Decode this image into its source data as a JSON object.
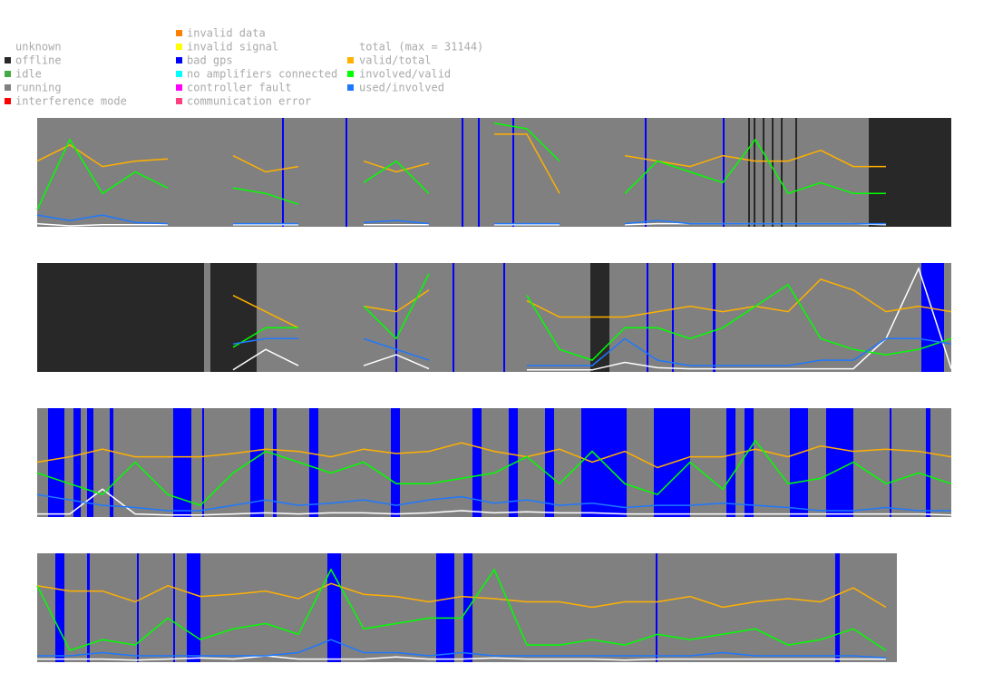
{
  "legend": {
    "states": [
      {
        "name": "unknown",
        "color": "#ffffff"
      },
      {
        "name": "offline",
        "color": "#282828"
      },
      {
        "name": "idle",
        "color": "#44aa44"
      },
      {
        "name": "running",
        "color": "#808080"
      },
      {
        "name": "interference mode",
        "color": "#ff0000"
      },
      {
        "name": "invalid data",
        "color": "#ff8000"
      },
      {
        "name": "invalid signal",
        "color": "#ffff00"
      },
      {
        "name": "bad gps",
        "color": "#0000ff"
      },
      {
        "name": "no amplifiers connected",
        "color": "#00ffff"
      },
      {
        "name": "controller fault",
        "color": "#ff00ff"
      },
      {
        "name": "communication error",
        "color": "#ff4080"
      }
    ],
    "series": [
      {
        "name": "total (max = 31144)",
        "color": "#ffffff"
      },
      {
        "name": "valid/total",
        "color": "#ffb000"
      },
      {
        "name": "involved/valid",
        "color": "#00ff00"
      },
      {
        "name": "used/involved",
        "color": "#1e78ff"
      }
    ]
  },
  "chart_data": [
    {
      "type": "line",
      "xlim": [
        0,
        1008
      ],
      "ylim": [
        0,
        1
      ],
      "x": [
        0,
        36,
        72,
        108,
        144,
        180,
        216,
        252,
        288,
        324,
        360,
        396,
        432,
        468,
        504,
        540,
        576,
        612,
        648,
        684,
        720,
        756,
        792,
        828,
        864,
        900,
        936,
        972,
        1008
      ],
      "states": [
        {
          "state": 3,
          "from": 0,
          "to": 1008
        },
        {
          "state": 1,
          "from": 917,
          "to": 1008
        },
        {
          "state": 7,
          "from": 270,
          "to": 272
        },
        {
          "state": 7,
          "from": 340,
          "to": 342
        },
        {
          "state": 7,
          "from": 468,
          "to": 470
        },
        {
          "state": 7,
          "from": 486,
          "to": 488
        },
        {
          "state": 7,
          "from": 524,
          "to": 526
        },
        {
          "state": 7,
          "from": 670,
          "to": 672
        },
        {
          "state": 7,
          "from": 756,
          "to": 758
        },
        {
          "state": 1,
          "from": 784,
          "to": 786
        },
        {
          "state": 1,
          "from": 790,
          "to": 792
        },
        {
          "state": 1,
          "from": 800,
          "to": 802
        },
        {
          "state": 1,
          "from": 810,
          "to": 812
        },
        {
          "state": 1,
          "from": 820,
          "to": 822
        },
        {
          "state": 1,
          "from": 836,
          "to": 838
        }
      ],
      "series": [
        {
          "values": [
            0.02,
            0,
            0.01,
            0.01,
            0.01,
            null,
            0.01,
            0.01,
            0.01,
            null,
            0.01,
            0.01,
            0.01,
            null,
            0.01,
            0.01,
            0.01,
            null,
            0.01,
            0.02,
            0.02,
            0.02,
            0.02,
            0.02,
            0.02,
            0.02,
            0.01,
            null,
            null
          ]
        },
        {
          "values": [
            0.6,
            0.75,
            0.55,
            0.6,
            0.62,
            null,
            0.65,
            0.5,
            0.55,
            null,
            0.6,
            0.5,
            0.58,
            null,
            0.85,
            0.85,
            0.3,
            null,
            0.65,
            0.6,
            0.55,
            0.65,
            0.6,
            0.6,
            0.7,
            0.55,
            0.55,
            null,
            null
          ]
        },
        {
          "values": [
            0.15,
            0.8,
            0.3,
            0.5,
            0.35,
            null,
            0.35,
            0.3,
            0.2,
            null,
            0.4,
            0.6,
            0.3,
            null,
            0.95,
            0.9,
            0.6,
            null,
            0.3,
            0.6,
            0.5,
            0.4,
            0.8,
            0.3,
            0.4,
            0.3,
            0.3,
            null,
            null
          ]
        },
        {
          "values": [
            0.1,
            0.05,
            0.1,
            0.03,
            0.02,
            null,
            0.02,
            0.02,
            0.02,
            null,
            0.03,
            0.05,
            0.02,
            null,
            0.02,
            0.02,
            0.02,
            null,
            0.02,
            0.05,
            0.02,
            0.02,
            0.02,
            0.02,
            0.02,
            0.02,
            0.02,
            null,
            null
          ]
        }
      ]
    },
    {
      "type": "line",
      "xlim": [
        0,
        1008
      ],
      "ylim": [
        0,
        1
      ],
      "x": [
        0,
        36,
        72,
        108,
        144,
        180,
        216,
        252,
        288,
        324,
        360,
        396,
        432,
        468,
        504,
        540,
        576,
        612,
        648,
        684,
        720,
        756,
        792,
        828,
        864,
        900,
        936,
        972,
        1008
      ],
      "states": [
        {
          "state": 3,
          "from": 0,
          "to": 1008
        },
        {
          "state": 1,
          "from": 0,
          "to": 184
        },
        {
          "state": 1,
          "from": 191,
          "to": 242
        },
        {
          "state": 1,
          "from": 610,
          "to": 631
        },
        {
          "state": 7,
          "from": 395,
          "to": 397
        },
        {
          "state": 7,
          "from": 458,
          "to": 460
        },
        {
          "state": 7,
          "from": 514,
          "to": 516
        },
        {
          "state": 7,
          "from": 672,
          "to": 674
        },
        {
          "state": 7,
          "from": 700,
          "to": 702
        },
        {
          "state": 7,
          "from": 745,
          "to": 748
        },
        {
          "state": 7,
          "from": 975,
          "to": 1000
        }
      ],
      "series": [
        {
          "values": [
            null,
            null,
            null,
            null,
            null,
            null,
            0.01,
            0.2,
            0.05,
            null,
            0.05,
            0.15,
            0.02,
            null,
            null,
            0.01,
            0.01,
            0.01,
            0.08,
            0.03,
            0.02,
            0.02,
            0.02,
            0.02,
            0.02,
            0.02,
            0.3,
            0.95,
            0.02
          ]
        },
        {
          "values": [
            null,
            null,
            null,
            null,
            null,
            null,
            0.7,
            0.55,
            0.4,
            null,
            0.6,
            0.55,
            0.75,
            null,
            null,
            0.65,
            0.5,
            0.5,
            0.5,
            0.55,
            0.6,
            0.55,
            0.6,
            0.55,
            0.85,
            0.75,
            0.55,
            0.6,
            0.55
          ]
        },
        {
          "values": [
            null,
            null,
            null,
            null,
            null,
            null,
            0.22,
            0.4,
            0.4,
            null,
            0.6,
            0.3,
            0.9,
            null,
            null,
            0.7,
            0.2,
            0.1,
            0.4,
            0.4,
            0.3,
            0.4,
            0.6,
            0.8,
            0.3,
            0.2,
            0.15,
            0.2,
            0.3
          ]
        },
        {
          "values": [
            null,
            null,
            null,
            null,
            null,
            null,
            0.25,
            0.3,
            0.3,
            null,
            0.3,
            0.2,
            0.1,
            null,
            null,
            0.05,
            0.05,
            0.05,
            0.3,
            0.1,
            0.05,
            0.05,
            0.05,
            0.05,
            0.1,
            0.1,
            0.3,
            0.3,
            0.25
          ]
        }
      ]
    },
    {
      "type": "line",
      "xlim": [
        0,
        1008
      ],
      "ylim": [
        0,
        1
      ],
      "x": [
        0,
        36,
        72,
        108,
        144,
        180,
        216,
        252,
        288,
        324,
        360,
        396,
        432,
        468,
        504,
        540,
        576,
        612,
        648,
        684,
        720,
        756,
        792,
        828,
        864,
        900,
        936,
        972,
        1008
      ],
      "states": [
        {
          "state": 3,
          "from": 0,
          "to": 1008
        },
        {
          "state": 7,
          "from": 12,
          "to": 30
        },
        {
          "state": 7,
          "from": 40,
          "to": 48
        },
        {
          "state": 7,
          "from": 55,
          "to": 62
        },
        {
          "state": 7,
          "from": 80,
          "to": 84
        },
        {
          "state": 7,
          "from": 150,
          "to": 170
        },
        {
          "state": 7,
          "from": 182,
          "to": 184
        },
        {
          "state": 7,
          "from": 235,
          "to": 250
        },
        {
          "state": 7,
          "from": 260,
          "to": 264
        },
        {
          "state": 7,
          "from": 300,
          "to": 310
        },
        {
          "state": 7,
          "from": 390,
          "to": 400
        },
        {
          "state": 7,
          "from": 480,
          "to": 490
        },
        {
          "state": 7,
          "from": 520,
          "to": 530
        },
        {
          "state": 7,
          "from": 560,
          "to": 570
        },
        {
          "state": 7,
          "from": 600,
          "to": 650
        },
        {
          "state": 7,
          "from": 680,
          "to": 720
        },
        {
          "state": 7,
          "from": 760,
          "to": 770
        },
        {
          "state": 7,
          "from": 780,
          "to": 790
        },
        {
          "state": 7,
          "from": 830,
          "to": 850
        },
        {
          "state": 7,
          "from": 870,
          "to": 900
        },
        {
          "state": 7,
          "from": 940,
          "to": 942
        },
        {
          "state": 7,
          "from": 980,
          "to": 985
        }
      ],
      "series": [
        {
          "values": [
            0.02,
            0.02,
            0.25,
            0.02,
            0.01,
            0.01,
            0.02,
            0.03,
            0.02,
            0.03,
            0.03,
            0.02,
            0.03,
            0.05,
            0.03,
            0.04,
            0.03,
            0.03,
            0.02,
            0.02,
            0.02,
            0.02,
            0.02,
            0.02,
            0.02,
            0.02,
            0.02,
            0.02,
            0.01
          ]
        },
        {
          "values": [
            0.5,
            0.55,
            0.62,
            0.55,
            0.55,
            0.55,
            0.58,
            0.62,
            0.6,
            0.55,
            0.62,
            0.58,
            0.6,
            0.68,
            0.6,
            0.55,
            0.62,
            0.5,
            0.6,
            0.45,
            0.55,
            0.55,
            0.62,
            0.55,
            0.65,
            0.6,
            0.62,
            0.6,
            0.55
          ]
        },
        {
          "values": [
            0.4,
            0.3,
            0.2,
            0.5,
            0.2,
            0.1,
            0.4,
            0.6,
            0.5,
            0.4,
            0.5,
            0.3,
            0.3,
            0.35,
            0.4,
            0.55,
            0.3,
            0.6,
            0.3,
            0.2,
            0.5,
            0.25,
            0.7,
            0.3,
            0.35,
            0.5,
            0.3,
            0.4,
            0.3
          ]
        },
        {
          "values": [
            0.2,
            0.15,
            0.1,
            0.08,
            0.05,
            0.05,
            0.1,
            0.15,
            0.1,
            0.12,
            0.15,
            0.1,
            0.15,
            0.18,
            0.12,
            0.15,
            0.1,
            0.12,
            0.08,
            0.1,
            0.1,
            0.12,
            0.1,
            0.08,
            0.05,
            0.05,
            0.08,
            0.05,
            0.05
          ]
        }
      ]
    },
    {
      "type": "line",
      "xlim": [
        0,
        1008
      ],
      "ylim": [
        0,
        1
      ],
      "x": [
        0,
        36,
        72,
        108,
        144,
        180,
        216,
        252,
        288,
        324,
        360,
        396,
        432,
        468,
        504,
        540,
        576,
        612,
        648,
        684,
        720,
        756,
        792,
        828,
        864,
        900,
        936,
        972,
        1008
      ],
      "states": [
        {
          "state": 3,
          "from": 0,
          "to": 948
        },
        {
          "state": 7,
          "from": 20,
          "to": 30
        },
        {
          "state": 7,
          "from": 55,
          "to": 58
        },
        {
          "state": 7,
          "from": 110,
          "to": 112
        },
        {
          "state": 7,
          "from": 150,
          "to": 152
        },
        {
          "state": 7,
          "from": 165,
          "to": 180
        },
        {
          "state": 7,
          "from": 320,
          "to": 335
        },
        {
          "state": 7,
          "from": 440,
          "to": 460
        },
        {
          "state": 7,
          "from": 470,
          "to": 480
        },
        {
          "state": 7,
          "from": 682,
          "to": 684
        },
        {
          "state": 7,
          "from": 880,
          "to": 885
        }
      ],
      "series": [
        {
          "values": [
            0.02,
            0.02,
            0.02,
            0.01,
            0.02,
            0.03,
            0.02,
            0.05,
            0.02,
            0.02,
            0.02,
            0.04,
            0.02,
            0.02,
            0.03,
            0.02,
            0.02,
            0.02,
            0.01,
            0.02,
            0.02,
            0.02,
            0.02,
            0.02,
            0.02,
            0.02,
            0.02,
            null,
            null
          ]
        },
        {
          "values": [
            0.7,
            0.65,
            0.65,
            0.55,
            0.7,
            0.6,
            0.62,
            0.65,
            0.58,
            0.72,
            0.62,
            0.6,
            0.55,
            0.6,
            0.58,
            0.55,
            0.55,
            0.5,
            0.55,
            0.55,
            0.6,
            0.5,
            0.55,
            0.58,
            0.55,
            0.68,
            0.5,
            null,
            null
          ]
        },
        {
          "values": [
            0.7,
            0.1,
            0.2,
            0.15,
            0.4,
            0.2,
            0.3,
            0.35,
            0.25,
            0.85,
            0.3,
            0.35,
            0.4,
            0.4,
            0.85,
            0.15,
            0.15,
            0.2,
            0.15,
            0.25,
            0.2,
            0.25,
            0.3,
            0.15,
            0.2,
            0.3,
            0.1,
            null,
            null
          ]
        },
        {
          "values": [
            0.05,
            0.05,
            0.08,
            0.05,
            0.05,
            0.05,
            0.05,
            0.05,
            0.08,
            0.2,
            0.08,
            0.08,
            0.05,
            0.08,
            0.05,
            0.05,
            0.05,
            0.05,
            0.05,
            0.05,
            0.05,
            0.08,
            0.05,
            0.05,
            0.05,
            0.05,
            0.03,
            null,
            null
          ]
        }
      ]
    }
  ]
}
